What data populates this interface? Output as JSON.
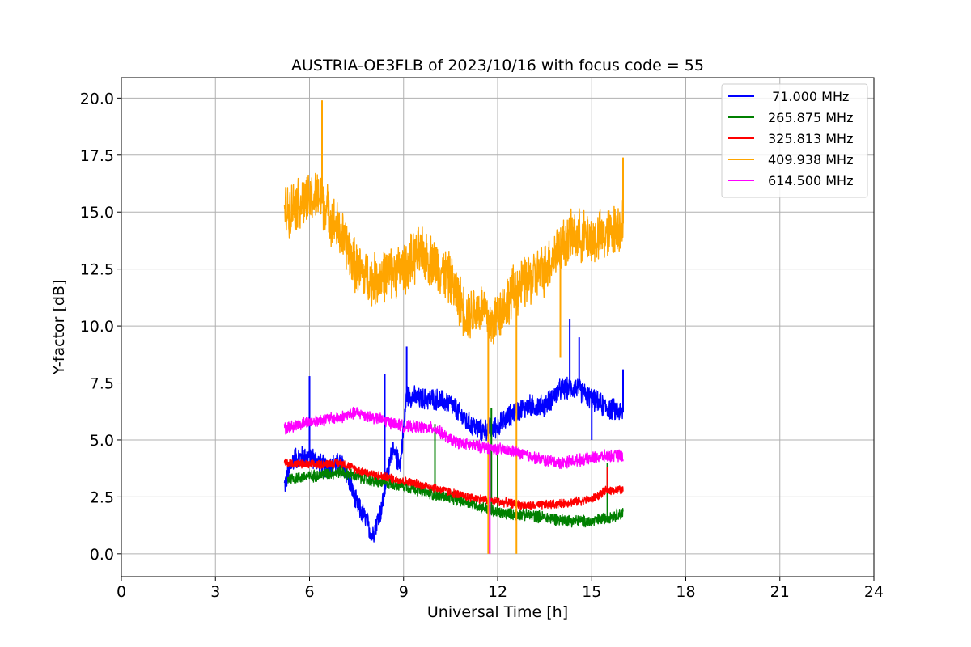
{
  "chart_data": {
    "type": "line",
    "title": "AUSTRIA-OE3FLB of 2023/10/16 with focus code = 55",
    "xlabel": "Universal Time [h]",
    "ylabel": "Y-factor [dB]",
    "xlim": [
      0,
      24
    ],
    "ylim": [
      -1.0,
      20.9
    ],
    "x_ticks": [
      0,
      3,
      6,
      9,
      12,
      15,
      18,
      21,
      24
    ],
    "x_tick_labels": [
      "0",
      "3",
      "6",
      "9",
      "12",
      "15",
      "18",
      "21",
      "24"
    ],
    "y_ticks": [
      0,
      2.5,
      5,
      7.5,
      10,
      12.5,
      15,
      17.5,
      20
    ],
    "y_tick_labels": [
      "0.0",
      "2.5",
      "5.0",
      "7.5",
      "10.0",
      "12.5",
      "15.0",
      "17.5",
      "20.0"
    ],
    "grid": true,
    "legend_position": "top-right",
    "series": [
      {
        "name": " 71.000 MHz",
        "color": "#0000ff",
        "noise": 0.55,
        "x": [
          5.2,
          5.5,
          6.0,
          6.5,
          7.0,
          7.2,
          7.5,
          7.8,
          8.0,
          8.3,
          8.6,
          8.9,
          9.1,
          9.5,
          10.0,
          10.5,
          11.0,
          11.5,
          12.0,
          12.5,
          13.0,
          13.5,
          14.0,
          14.5,
          15.0,
          15.5,
          16.0
        ],
        "y": [
          3.0,
          4.2,
          4.3,
          3.8,
          4.0,
          3.5,
          2.2,
          1.5,
          0.8,
          2.0,
          4.5,
          4.0,
          7.0,
          6.8,
          6.8,
          6.6,
          5.8,
          5.4,
          5.6,
          6.2,
          6.5,
          6.5,
          7.2,
          7.3,
          6.8,
          6.4,
          6.2
        ],
        "spikes": [
          [
            6.0,
            7.8
          ],
          [
            8.4,
            7.9
          ],
          [
            9.1,
            9.1
          ],
          [
            14.3,
            10.3
          ],
          [
            14.6,
            9.5
          ],
          [
            15.0,
            5.0
          ],
          [
            16.0,
            8.1
          ]
        ]
      },
      {
        "name": "265.875 MHz",
        "color": "#008000",
        "noise": 0.3,
        "x": [
          5.3,
          6.0,
          7.0,
          8.0,
          9.0,
          10.0,
          11.0,
          12.0,
          13.0,
          14.0,
          15.0,
          15.5,
          16.0
        ],
        "y": [
          3.3,
          3.4,
          3.6,
          3.2,
          3.0,
          2.6,
          2.3,
          1.8,
          1.7,
          1.5,
          1.4,
          1.6,
          1.8
        ],
        "spikes": [
          [
            10.0,
            5.7
          ],
          [
            11.8,
            6.4
          ],
          [
            12.0,
            4.7
          ],
          [
            15.5,
            4.0
          ]
        ]
      },
      {
        "name": "325.813 MHz",
        "color": "#ff0000",
        "noise": 0.22,
        "x": [
          5.2,
          6.0,
          7.0,
          7.5,
          8.0,
          9.0,
          10.0,
          11.0,
          12.0,
          13.0,
          14.0,
          15.0,
          15.5,
          16.0
        ],
        "y": [
          4.0,
          3.9,
          4.0,
          3.7,
          3.5,
          3.2,
          2.9,
          2.5,
          2.3,
          2.1,
          2.2,
          2.4,
          2.8,
          2.8
        ],
        "spikes": [
          [
            15.5,
            3.8
          ]
        ]
      },
      {
        "name": "409.938 MHz",
        "color": "#ffa500",
        "noise": 1.3,
        "x": [
          5.2,
          5.5,
          6.0,
          6.3,
          6.8,
          7.2,
          7.5,
          8.0,
          8.5,
          9.0,
          9.5,
          10.0,
          10.5,
          11.0,
          11.5,
          11.8,
          12.0,
          12.5,
          13.0,
          13.5,
          14.0,
          14.5,
          15.0,
          15.5,
          16.0
        ],
        "y": [
          15.0,
          15.3,
          15.5,
          15.7,
          14.5,
          13.5,
          12.5,
          12.0,
          12.3,
          12.5,
          13.2,
          12.8,
          12.0,
          10.5,
          10.8,
          10.0,
          10.5,
          11.5,
          12.0,
          12.5,
          13.5,
          14.0,
          13.8,
          14.0,
          14.5
        ],
        "spikes": [
          [
            6.4,
            19.9
          ],
          [
            11.7,
            0.0
          ],
          [
            12.6,
            0.0
          ],
          [
            14.0,
            8.6
          ],
          [
            16.0,
            17.4
          ]
        ]
      },
      {
        "name": "614.500 MHz",
        "color": "#ff00ff",
        "noise": 0.3,
        "x": [
          5.2,
          6.0,
          7.0,
          7.5,
          8.0,
          8.5,
          9.0,
          10.0,
          10.5,
          11.0,
          11.5,
          12.0,
          12.5,
          13.0,
          13.5,
          14.0,
          15.0,
          15.5,
          16.0
        ],
        "y": [
          5.5,
          5.8,
          6.0,
          6.2,
          6.0,
          5.8,
          5.6,
          5.5,
          5.0,
          4.8,
          4.7,
          4.6,
          4.5,
          4.3,
          4.1,
          4.0,
          4.2,
          4.3,
          4.3
        ],
        "spikes": [
          [
            11.75,
            0.0
          ]
        ]
      }
    ]
  }
}
